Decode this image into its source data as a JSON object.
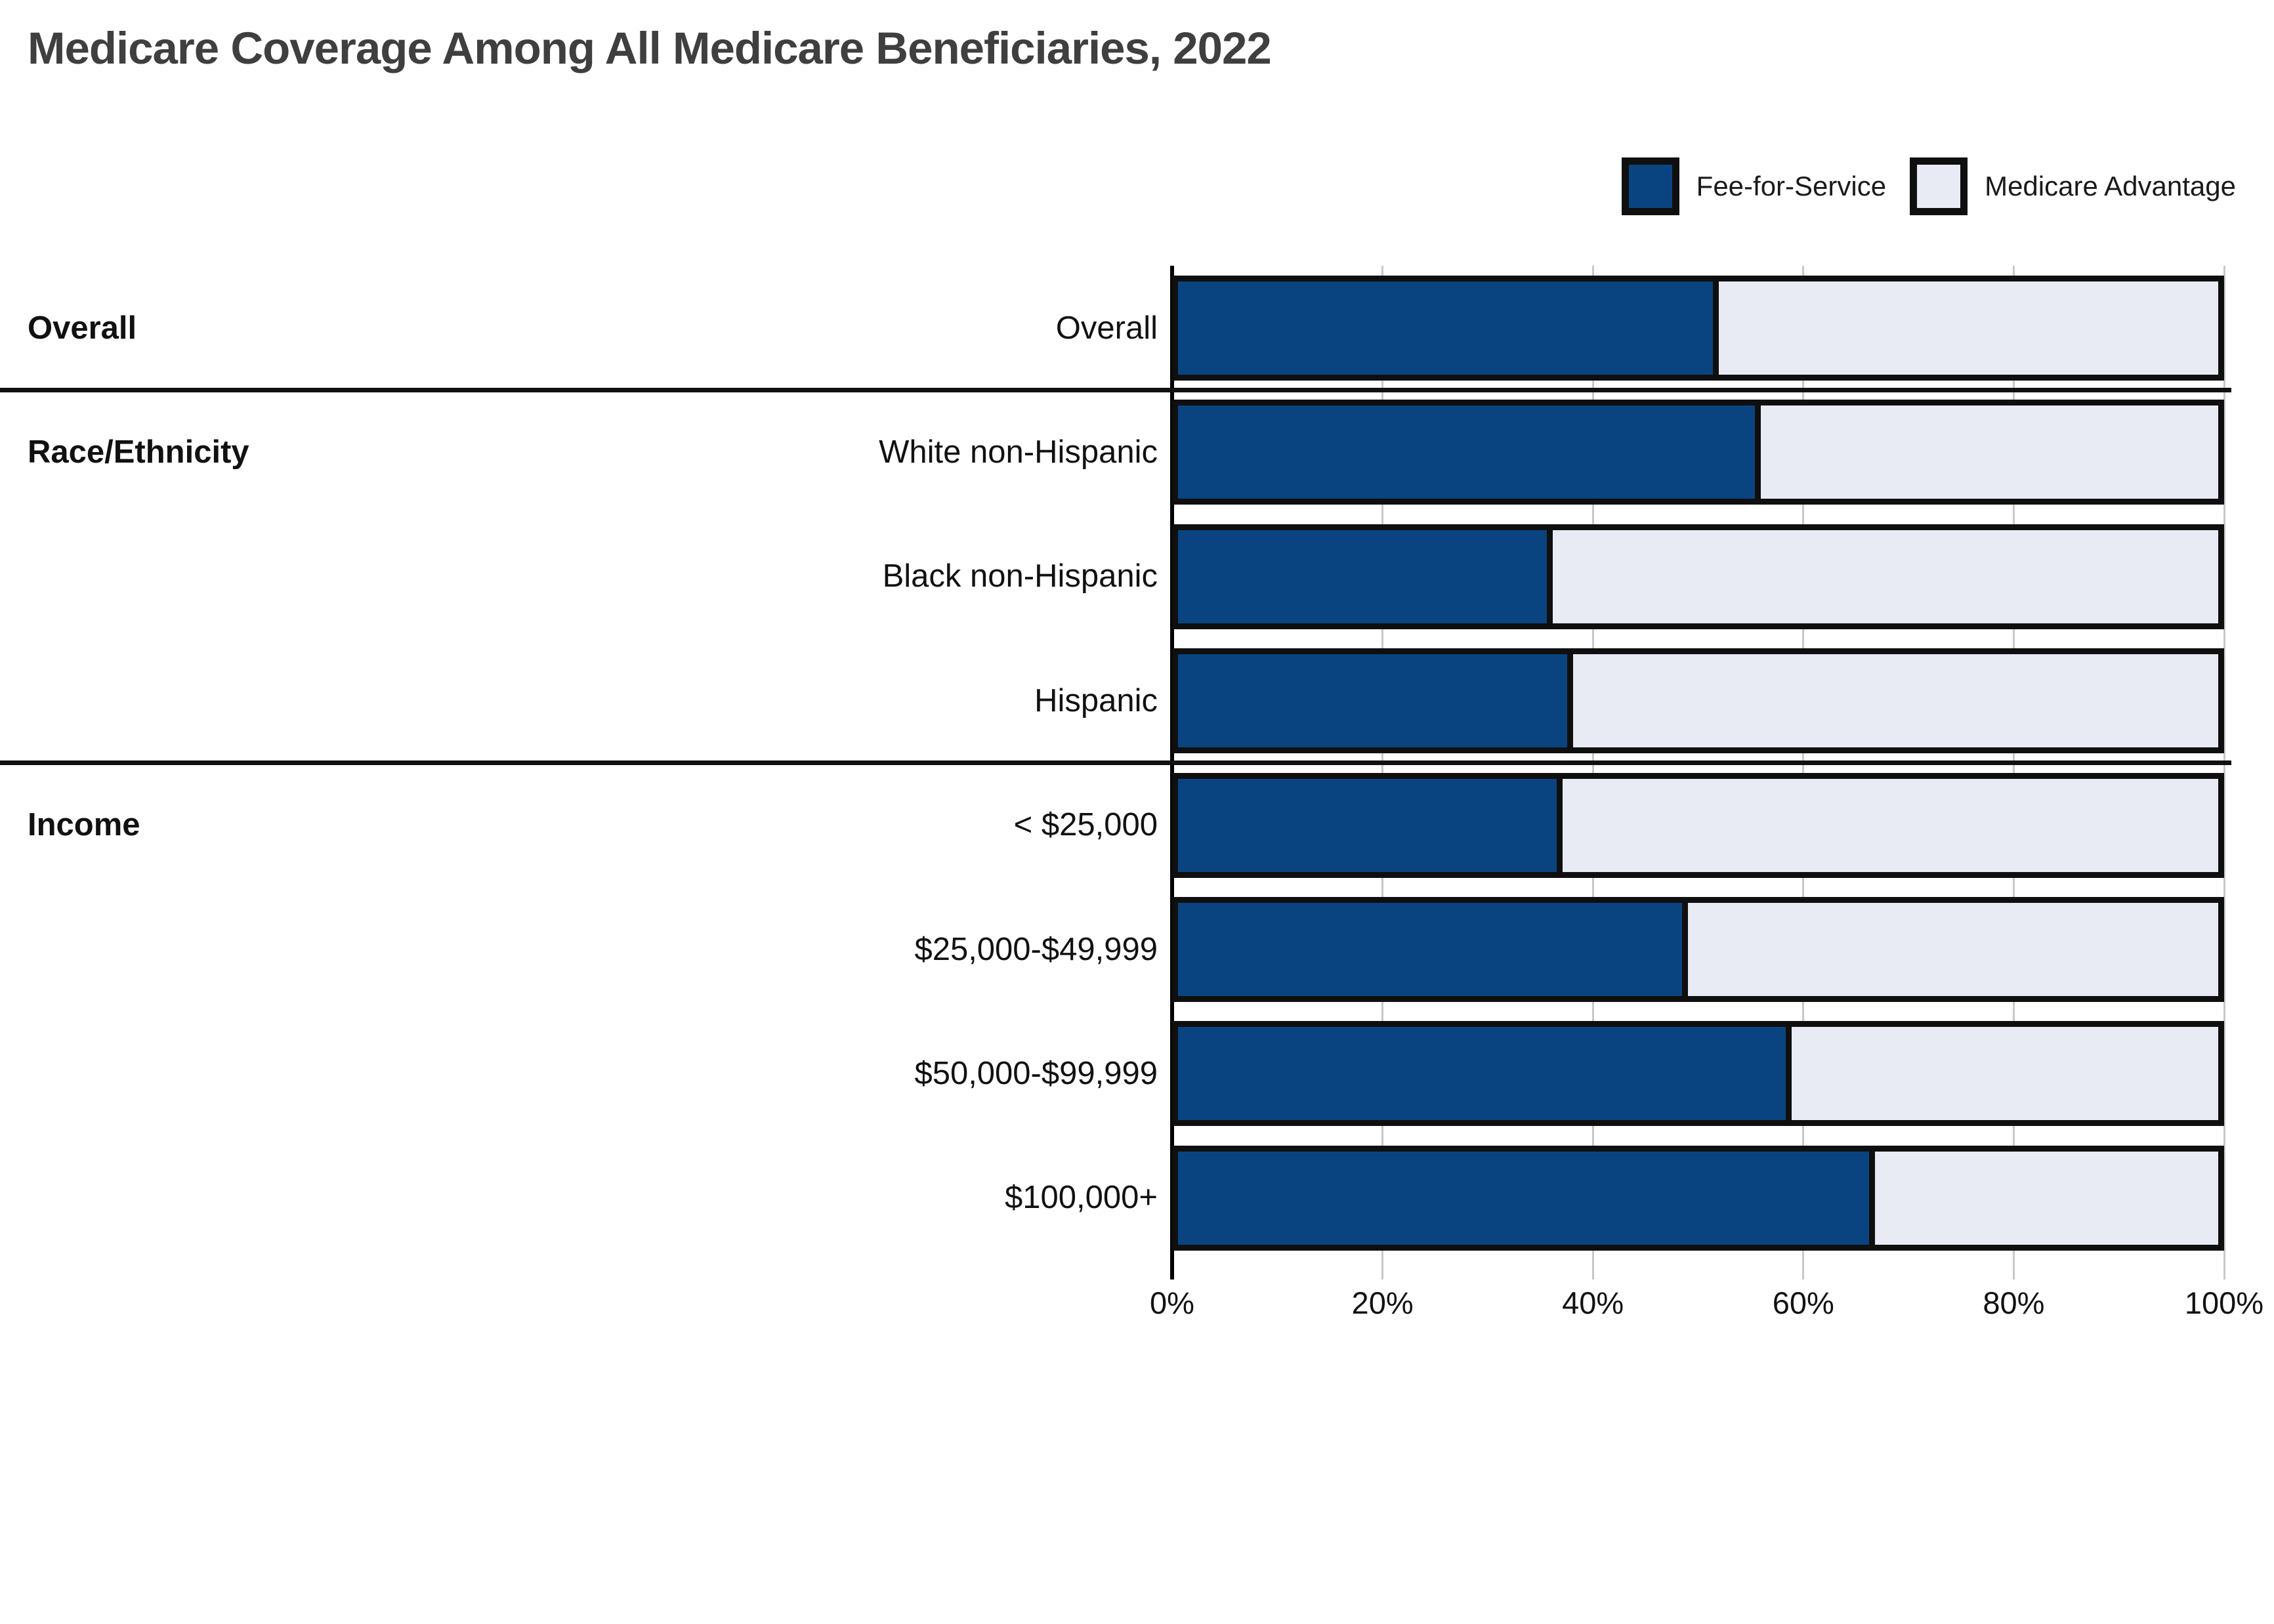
{
  "title": "Medicare Coverage Among All Medicare Beneficiaries, 2022",
  "colors": {
    "fee_for_service": "#0A4480",
    "medicare_advantage": "#E8EBF4",
    "bar_border": "#0F0F0F",
    "gridline": "#C8C8C8",
    "axis_line": "#000000",
    "title_text": "#3F3F3F",
    "label_text": "#111111"
  },
  "chart_data": {
    "type": "bar",
    "orientation": "horizontal",
    "stacked": true,
    "title": "Medicare Coverage Among All Medicare Beneficiaries, 2022",
    "categories": [
      "Overall",
      "White non-Hispanic",
      "Black non-Hispanic",
      "Hispanic",
      "< $25,000",
      "$25,000-$49,999",
      "$50,000-$99,999",
      "$100,000+"
    ],
    "sections": [
      {
        "label": "Overall",
        "categories": [
          "Overall"
        ]
      },
      {
        "label": "Race/Ethnicity",
        "categories": [
          "White non-Hispanic",
          "Black non-Hispanic",
          "Hispanic"
        ]
      },
      {
        "label": "Income",
        "categories": [
          "< $25,000",
          "$25,000-$49,999",
          "$50,000-$99,999",
          "$100,000+"
        ]
      }
    ],
    "series": [
      {
        "name": "Fee-for-Service",
        "color": "#0A4480",
        "values": [
          52,
          56,
          36,
          38,
          37,
          49,
          59,
          67
        ]
      },
      {
        "name": "Medicare Advantage",
        "color": "#E8EBF4",
        "values": [
          48,
          44,
          64,
          62,
          63,
          51,
          41,
          33
        ]
      }
    ],
    "xlabel": "",
    "ylabel": "",
    "xlim": [
      0,
      100
    ],
    "x_ticks": [
      0,
      20,
      40,
      60,
      80,
      100
    ],
    "x_tick_labels": [
      "0%",
      "20%",
      "40%",
      "60%",
      "80%",
      "100%"
    ],
    "grid": true,
    "legend_position": "top-right"
  }
}
